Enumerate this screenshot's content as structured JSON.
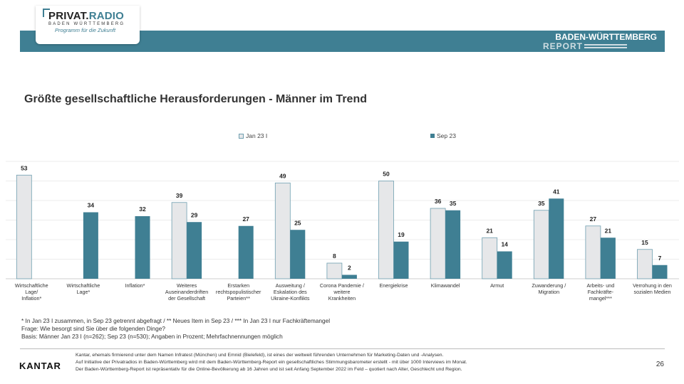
{
  "header": {
    "logo_main_a": "PRIVAT.",
    "logo_main_b": "RADIO",
    "logo_sub": "BADEN WÜRTTEMBERG",
    "logo_tag": "Programm für die Zukunft",
    "report_title": "BADEN-WÜRTTEMBERG",
    "report_sub": "REPORT"
  },
  "colors": {
    "accent": "#3f7f93",
    "jan": "#e6e7e9",
    "sep": "#3f7f93"
  },
  "chart_data": {
    "type": "bar",
    "title": "Größte gesellschaftliche Herausforderungen - Männer im Trend",
    "categories": [
      [
        "Wirtschaftliche",
        "Lage/",
        "Inflation*"
      ],
      [
        "Wirtschaftliche",
        "Lage*"
      ],
      [
        "Inflation*"
      ],
      [
        "Weiteres",
        "Auseinanderdriften",
        "der Gesellschaft"
      ],
      [
        "Erstarken",
        "rechtspopulistischer",
        "Parteien**"
      ],
      [
        "Ausweitung /",
        "Eskalation des",
        "Ukraine-Konflikts"
      ],
      [
        "Corona Pandemie /",
        "weitere",
        "Krankheiten"
      ],
      [
        "Energiekrise"
      ],
      [
        "Klimawandel"
      ],
      [
        "Armut"
      ],
      [
        "Zuwanderung /",
        "Migration"
      ],
      [
        "Arbeits- und",
        "Fachkräfte-",
        "mangel***"
      ],
      [
        "Verrohung in den",
        "sozialen Medien"
      ]
    ],
    "series": [
      {
        "name": "Jan 23 I",
        "values": [
          53,
          null,
          null,
          39,
          null,
          49,
          8,
          50,
          36,
          21,
          35,
          27,
          15
        ]
      },
      {
        "name": "Sep 23",
        "values": [
          null,
          34,
          32,
          29,
          27,
          25,
          2,
          19,
          35,
          14,
          41,
          21,
          7
        ]
      }
    ],
    "ylim": [
      0,
      60
    ],
    "grid": true,
    "legend": "top"
  },
  "notes": [
    "* In Jan 23 I zusammen, in Sep 23 getrennt abgefragt / ** Neues Item in Sep 23 / *** In Jan 23 I nur Fachkräftemangel",
    "Frage: Wie besorgt sind Sie über die folgenden Dinge?",
    "Basis: Männer Jan 23 I (n=262); Sep 23 (n=530); Angaben in Prozent; Mehrfachnennungen möglich"
  ],
  "footer": {
    "brand": "KANTAR",
    "lines": [
      "Kantar, ehemals firmierend unter dem Namen Infratest (München) und Emnid (Bielefeld), ist eines der weltweit führenden Unternehmen für Marketing-Daten und -Analysen.",
      "Auf Initiative der Privatradios in Baden-Württemberg wird mit dem Baden-Württemberg-Report ein gesellschaftliches Stimmungsbarometer erstellt - mit über 1000 Interviews im Monat.",
      "Der Baden-Württemberg-Report ist repräsentativ für die Online-Bevölkerung ab 16 Jahren und ist seit Anfang September 2022 im Feld – quotiert nach Alter, Geschlecht und Region."
    ],
    "page": "26"
  }
}
